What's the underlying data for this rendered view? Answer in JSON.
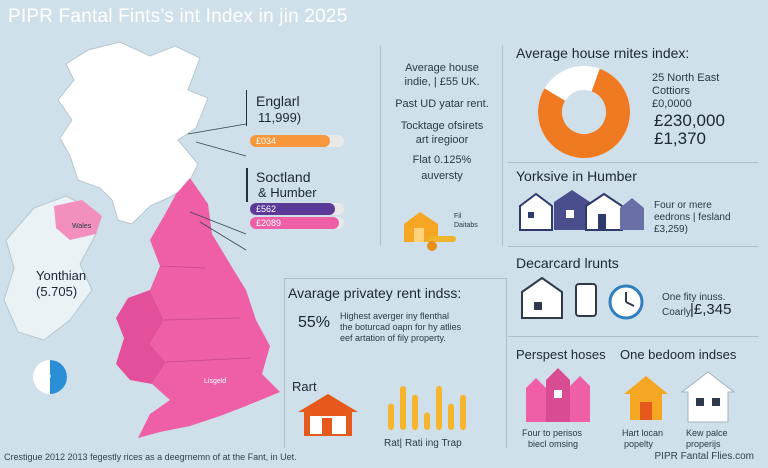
{
  "title": "PIPR Fantal Fints’s int Index in jin 2025",
  "map": {
    "wales_label": "Wales",
    "england_label": "Lisgeld",
    "legend_left_title": "Yonthian",
    "legend_left_value": "(5.705)",
    "pie_label": "50%",
    "pie_fraction": 0.5,
    "colors": {
      "scotland": "#ffffff",
      "england": "#ee5fa8",
      "ireland": "#eaf2f6",
      "ni": "#f28fbd"
    }
  },
  "england_box": {
    "title": "Englarl",
    "value": "11,999)",
    "bar_label": "£034",
    "bar_fraction": 0.85,
    "bar_color": "#f7963a"
  },
  "scotland_box": {
    "title": "Soctland",
    "subtitle": "& Humber",
    "bar1_label": "£562",
    "bar1_color": "#5b3a97",
    "bar1_fraction": 0.9,
    "bar2_label": "£2089",
    "bar2_color": "#ee5fa8",
    "bar2_fraction": 0.95
  },
  "center_info": {
    "line1": "Average house",
    "line2": "indie, | £55 UK.",
    "line3": "Past UD yatar rent.",
    "line4": "Tocktage ofsirets",
    "line5": "art iregioor",
    "line6": "Flat  0.125%",
    "line7": "auversty"
  },
  "keys_label": "Fil Daitabs",
  "index_panel": {
    "heading": "Average house rnites index:",
    "donut_fraction": 0.78,
    "donut_color": "#f07a22",
    "item1": "25 North East",
    "item2": "Cottiors",
    "item3": "£0,0000",
    "value1": "£230,000",
    "value2": "£1,370"
  },
  "yorkshire": {
    "heading": "Yorksive in Humber",
    "line1": "Four or mere",
    "line2": "eedrons | fesland",
    "line3": "£3,259)"
  },
  "decarcard": {
    "heading": "Decarcard lrunts",
    "line1": "One fity inuss.",
    "line2": "Coarly",
    "value": "|£,345"
  },
  "rent_panel": {
    "heading": "Avarage privatey rent indss:",
    "percent": "55%",
    "line1": "Highest averger iny flenthal",
    "line2": "the boturcad oapn for hy atlies",
    "line3": "eef artation of fily property."
  },
  "rart_panel": {
    "heading": "Rart",
    "chart_caption": "Rat| Rati ing Trap",
    "bar_values": [
      3,
      5,
      4,
      2,
      5,
      3,
      4
    ],
    "bar_color": "#f5b52e"
  },
  "perspect": {
    "heading": "Perspest hoses",
    "line1": "Four to perisos",
    "line2": "biecl omsing"
  },
  "one_bed": {
    "heading": "One bedoom indses",
    "line1a": "Hart locan",
    "line1b": "popelty",
    "line2a": "Kew palce",
    "line2b": "properijs"
  },
  "footer": "Crestigue 2012 2013 fegestly rices as a deegrnemn of at the Fant, in Uet.",
  "footer_right": "PIPR Fantal Flies.com"
}
